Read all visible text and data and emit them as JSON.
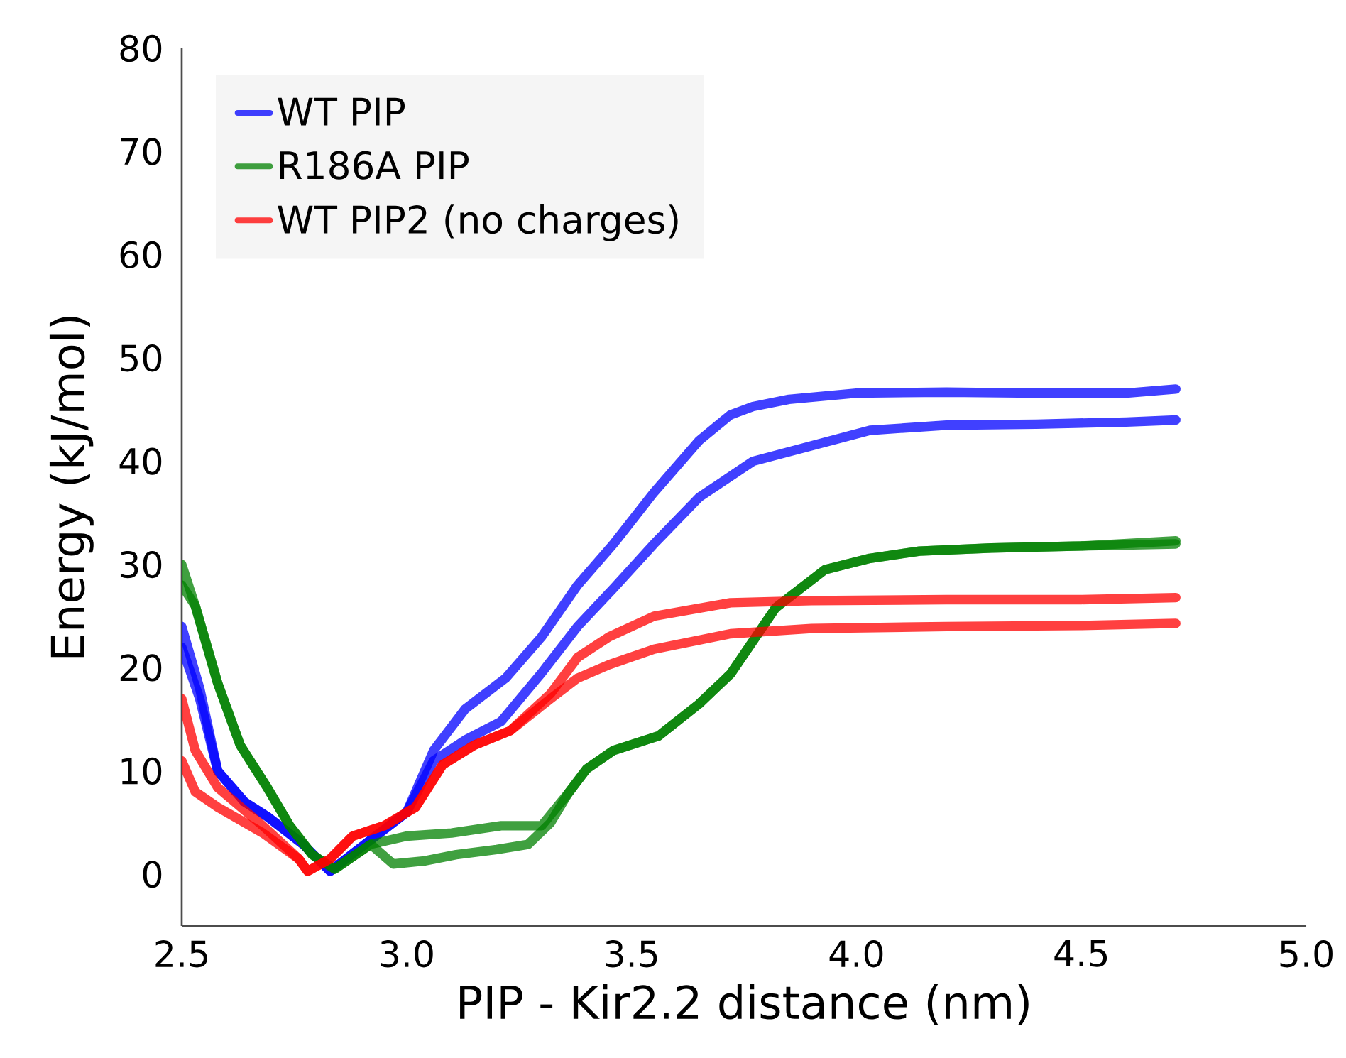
{
  "chart_data": {
    "type": "line",
    "xlabel": "PIP - Kir2.2 distance (nm)",
    "ylabel": "Energy (kJ/mol)",
    "xlim": [
      2.5,
      5.0
    ],
    "ylim": [
      -5,
      80
    ],
    "xticks": [
      {
        "value": 2.5,
        "label": "2.5"
      },
      {
        "value": 3.0,
        "label": "3.0"
      },
      {
        "value": 3.5,
        "label": "3.5"
      },
      {
        "value": 4.0,
        "label": "4.0"
      },
      {
        "value": 4.5,
        "label": "4.5"
      },
      {
        "value": 5.0,
        "label": "5.0"
      }
    ],
    "yticks": [
      0,
      10,
      20,
      30,
      40,
      50,
      60,
      70,
      80
    ],
    "legend": "top left",
    "series": [
      {
        "name": "WT PIP",
        "color": "#0000ff",
        "x": [
          2.5,
          2.54,
          2.58,
          2.64,
          2.69,
          2.77,
          2.83,
          2.88,
          2.94,
          3.0,
          3.06,
          3.13,
          3.22,
          3.3,
          3.38,
          3.46,
          3.55,
          3.65,
          3.72,
          3.77,
          3.85,
          4.0,
          4.2,
          4.4,
          4.6,
          4.71
        ],
        "values": [
          24,
          18,
          10,
          7,
          5.6,
          2.9,
          0.3,
          2,
          4,
          6,
          12,
          16,
          19,
          23,
          28,
          32,
          37,
          42,
          44.5,
          45.3,
          46,
          46.6,
          46.7,
          46.6,
          46.6,
          47
        ]
      },
      {
        "color": "#0000ff",
        "x": [
          2.5,
          2.54,
          2.58,
          2.64,
          2.69,
          2.77,
          2.83,
          2.88,
          2.94,
          3.0,
          3.06,
          3.13,
          3.21,
          3.3,
          3.38,
          3.46,
          3.55,
          3.65,
          3.77,
          3.9,
          4.03,
          4.2,
          4.4,
          4.6,
          4.71
        ],
        "values": [
          22,
          17,
          10,
          7,
          5.6,
          2.9,
          0.3,
          2,
          4,
          6,
          11,
          13,
          14.8,
          19.5,
          24,
          27.7,
          32,
          36.5,
          40,
          41.5,
          43,
          43.5,
          43.6,
          43.8,
          44
        ]
      },
      {
        "name": "R186A PIP",
        "color": "#008000",
        "x": [
          2.5,
          2.53,
          2.58,
          2.63,
          2.69,
          2.74,
          2.79,
          2.84,
          2.92,
          3.0,
          3.1,
          3.21,
          3.3,
          3.36,
          3.4,
          3.46,
          3.56,
          3.65,
          3.72,
          3.82,
          3.93,
          4.03,
          4.14,
          4.3,
          4.5,
          4.71
        ],
        "values": [
          28,
          26,
          18.5,
          12.5,
          8.4,
          4.7,
          1.9,
          0.5,
          2.9,
          3.7,
          4,
          4.7,
          4.7,
          7.9,
          10.2,
          12,
          13.4,
          16.5,
          19.4,
          25.8,
          29.5,
          30.6,
          31.3,
          31.6,
          31.8,
          32.3
        ]
      },
      {
        "color": "#008000",
        "x": [
          2.5,
          2.53,
          2.58,
          2.63,
          2.69,
          2.74,
          2.79,
          2.84,
          2.92,
          2.97,
          3.04,
          3.11,
          3.2,
          3.27,
          3.32,
          3.36,
          3.4,
          3.46,
          3.56,
          3.65,
          3.72,
          3.82,
          3.93,
          4.03,
          4.14,
          4.3,
          4.5,
          4.71
        ],
        "values": [
          30,
          26,
          18.5,
          12.5,
          8.4,
          4.7,
          1.9,
          0.5,
          2.9,
          1,
          1.3,
          1.9,
          2.4,
          2.9,
          5,
          7.9,
          10.2,
          12,
          13.4,
          16.5,
          19.4,
          25.8,
          29.5,
          30.6,
          31.3,
          31.6,
          31.8,
          32
        ]
      },
      {
        "name": "WT PIP2 (no charges)",
        "color": "#ff0000",
        "x": [
          2.5,
          2.53,
          2.58,
          2.68,
          2.76,
          2.78,
          2.83,
          2.88,
          2.95,
          3.02,
          3.08,
          3.15,
          3.23,
          3.32,
          3.38,
          3.45,
          3.55,
          3.72,
          3.9,
          4.2,
          4.5,
          4.71
        ],
        "values": [
          17,
          12,
          8.4,
          4.7,
          1.5,
          0.3,
          1.5,
          3.7,
          4.7,
          6.5,
          10.6,
          12.5,
          13.9,
          17.5,
          21,
          23,
          25,
          26.3,
          26.5,
          26.6,
          26.6,
          26.8
        ]
      },
      {
        "color": "#ff0000",
        "x": [
          2.5,
          2.53,
          2.58,
          2.68,
          2.76,
          2.78,
          2.83,
          2.88,
          2.95,
          3.02,
          3.08,
          3.15,
          3.23,
          3.32,
          3.38,
          3.45,
          3.55,
          3.72,
          3.9,
          4.2,
          4.5,
          4.71
        ],
        "values": [
          11,
          8,
          6.5,
          4,
          1.5,
          0.3,
          1.5,
          3.7,
          4.7,
          6.5,
          10.6,
          12.5,
          13.9,
          17,
          19,
          20.3,
          21.8,
          23.3,
          23.8,
          24,
          24.1,
          24.3
        ]
      }
    ]
  }
}
